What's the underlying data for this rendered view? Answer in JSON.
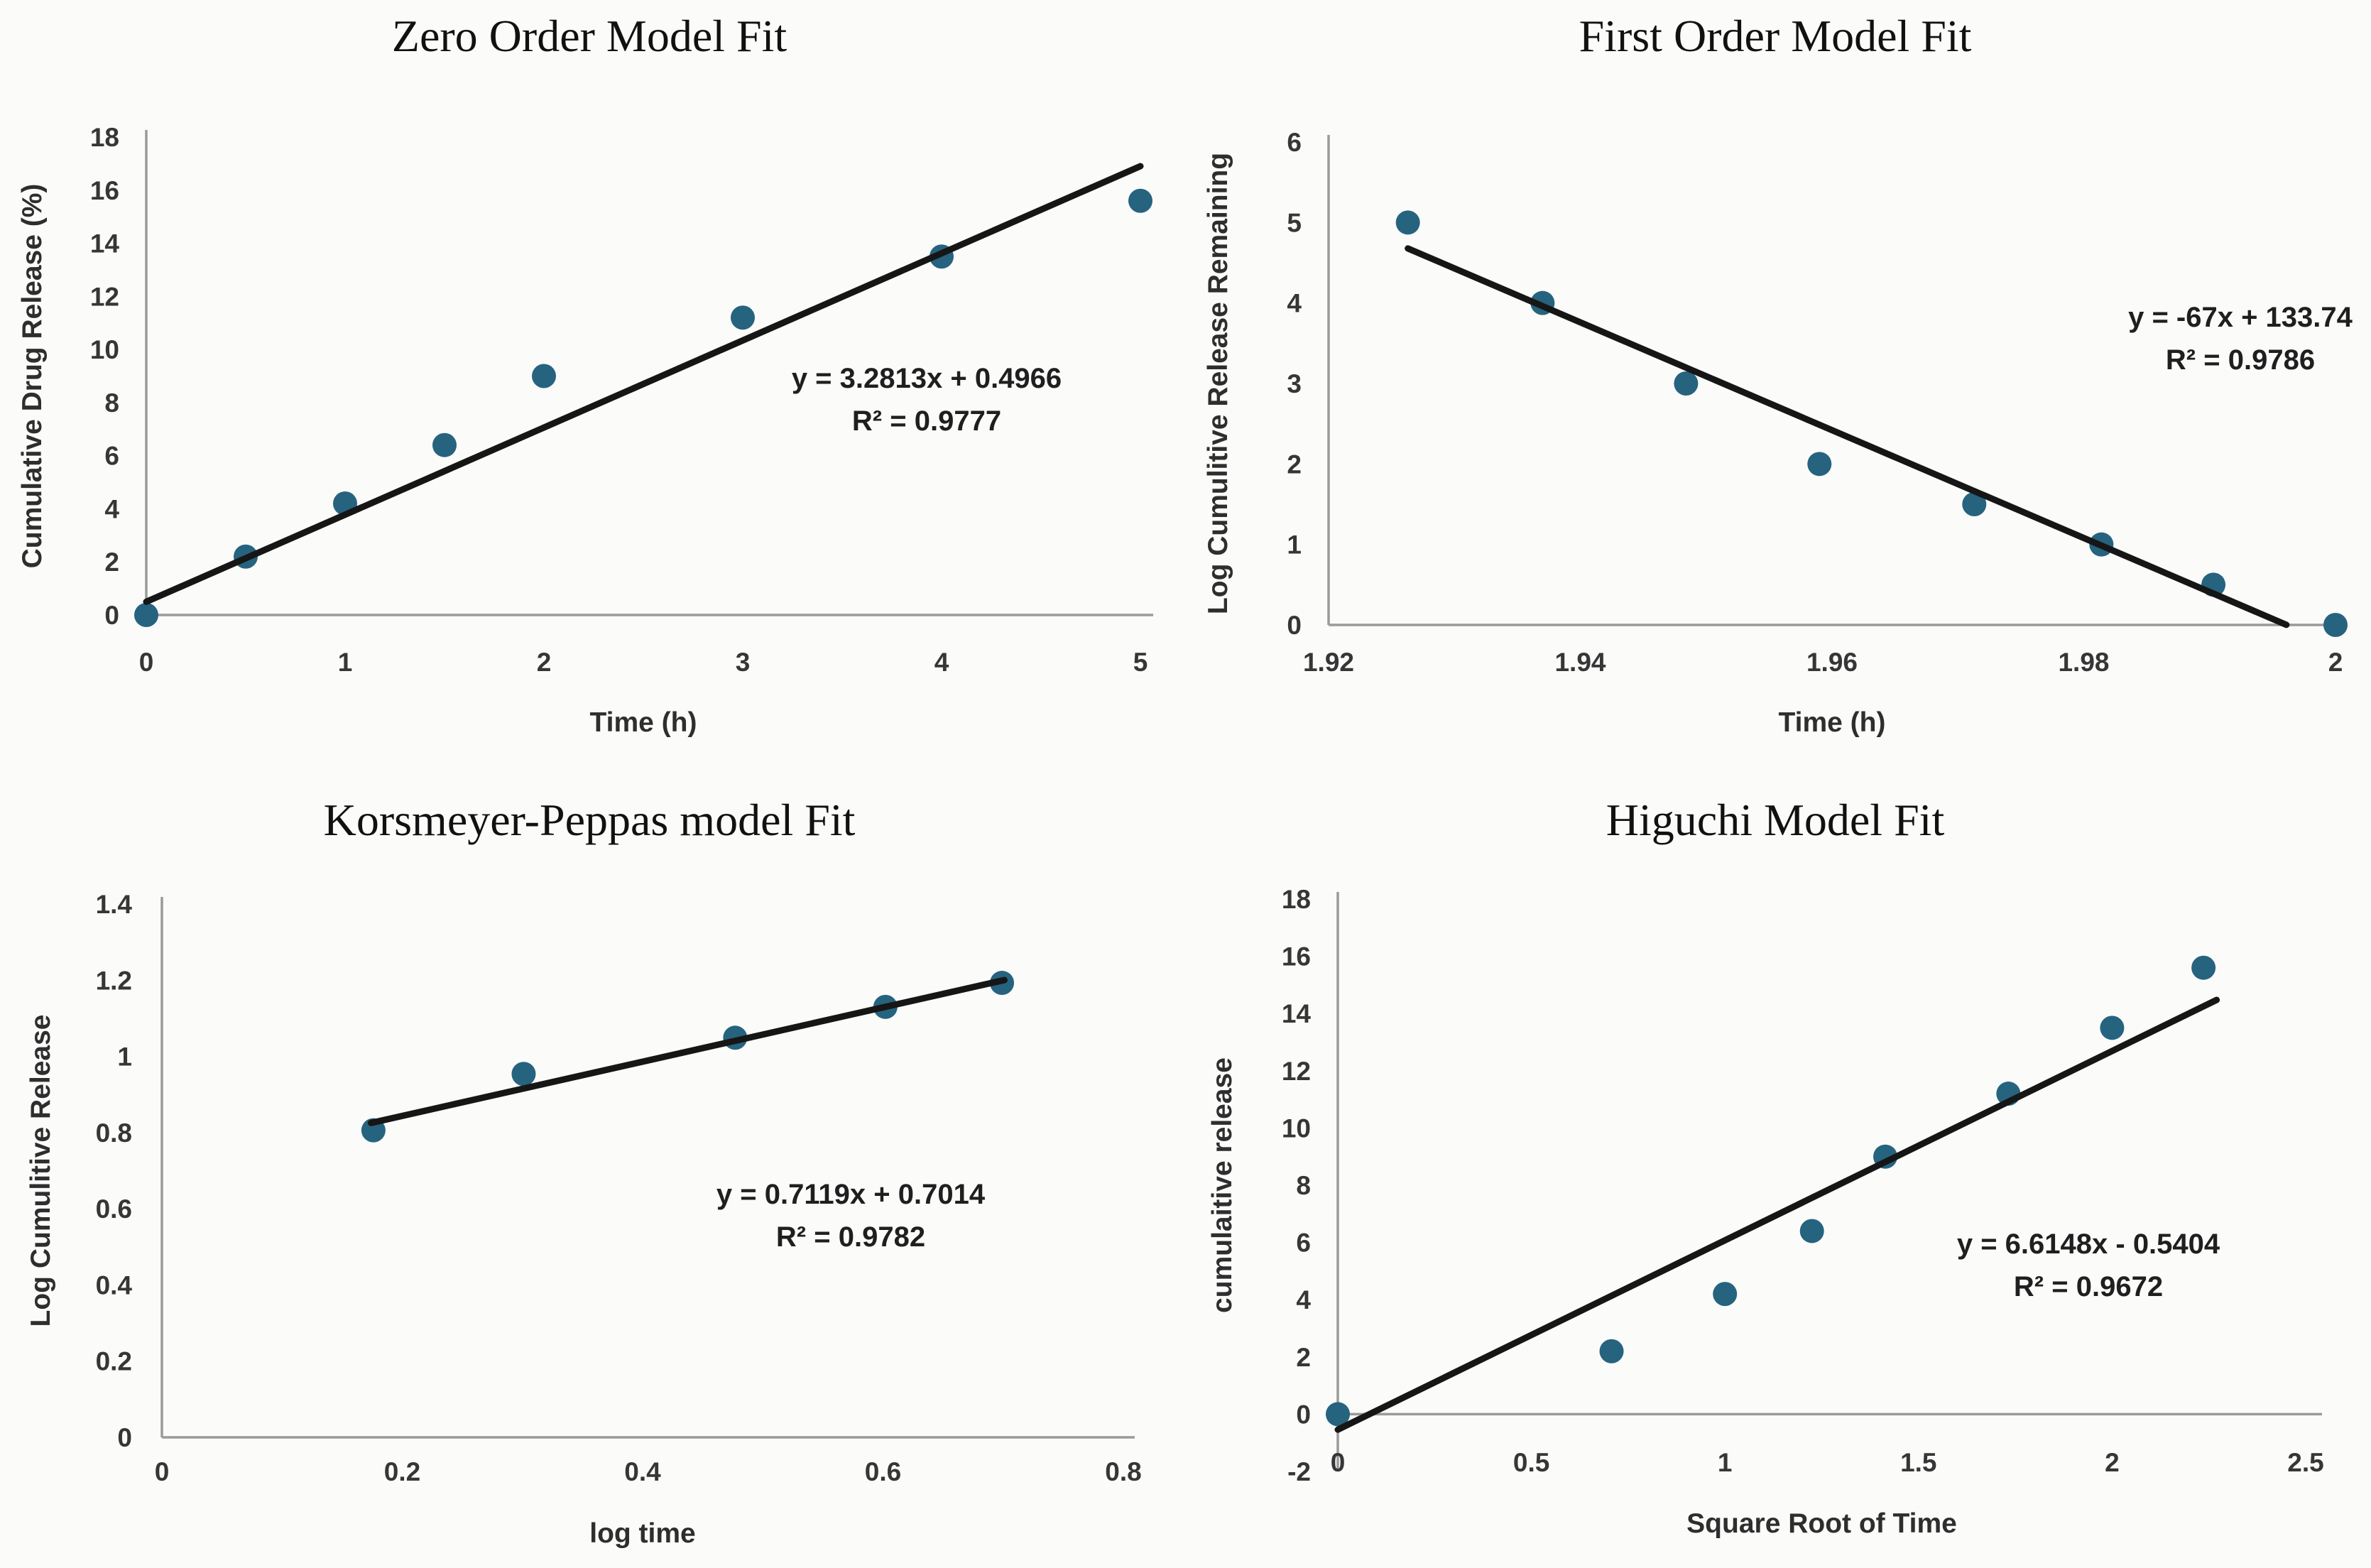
{
  "figure": {
    "background": "#fbfbfa"
  },
  "colors": {
    "point": "#26637f",
    "trendline": "#161616",
    "axis_line": "#9a9a9a",
    "tick_text": "#363636",
    "title_text": "#111111"
  },
  "chart_data": [
    {
      "id": "zero-order",
      "type": "scatter",
      "title": "Zero Order Model Fit",
      "xlabel": "Time (h)",
      "ylabel": "Cumulative Drug Release (%)",
      "equation": "y = 3.2813x + 0.4966",
      "r2": "R² = 0.9777",
      "xlim": [
        0,
        5
      ],
      "ylim": [
        0,
        18
      ],
      "grid": false,
      "xticks": {
        "values": [
          0,
          1,
          2,
          3,
          4,
          5
        ],
        "labels": [
          "0",
          "1",
          "2",
          "3",
          "4",
          "5"
        ]
      },
      "yticks": {
        "values": [
          0,
          2,
          4,
          6,
          8,
          10,
          12,
          14,
          16,
          18
        ],
        "labels": [
          "0",
          "2",
          "4",
          "6",
          "8",
          "10",
          "12",
          "14",
          "16",
          "18"
        ]
      },
      "points": [
        [
          0,
          0
        ],
        [
          0.5,
          2.2
        ],
        [
          1,
          4.2
        ],
        [
          1.5,
          6.4
        ],
        [
          2,
          9
        ],
        [
          3,
          11.2
        ],
        [
          4,
          13.5
        ],
        [
          5,
          15.6
        ]
      ],
      "trendline": {
        "slope": 3.2813,
        "intercept": 0.4966,
        "x_start": 0,
        "x_end": 5
      }
    },
    {
      "id": "first-order",
      "type": "scatter",
      "title": "First Order Model Fit",
      "xlabel": "Time (h)",
      "ylabel": "Log Cumulitive Release Remaining",
      "equation": "y = -67x + 133.74",
      "r2": "R² = 0.9786",
      "xlim": [
        1.92,
        2
      ],
      "ylim": [
        0,
        6
      ],
      "grid": false,
      "xticks": {
        "values": [
          1.92,
          1.94,
          1.96,
          1.98,
          2
        ],
        "labels": [
          "1.92",
          "1.94",
          "1.96",
          "1.98",
          "2"
        ]
      },
      "yticks": {
        "values": [
          0,
          1,
          2,
          3,
          4,
          5,
          6
        ],
        "labels": [
          "0",
          "1",
          "2",
          "3",
          "4",
          "5",
          "6"
        ]
      },
      "points": [
        [
          1.9263,
          5
        ],
        [
          1.937,
          4
        ],
        [
          1.9484,
          3
        ],
        [
          1.959,
          2
        ],
        [
          1.9713,
          1.5
        ],
        [
          1.9814,
          1
        ],
        [
          1.9903,
          0.5
        ],
        [
          2,
          0
        ]
      ],
      "trendline": {
        "slope": -67,
        "intercept": 133.74,
        "x_start": 1.9263,
        "x_end": 1.9961
      }
    },
    {
      "id": "korsmeyer-peppas",
      "type": "scatter",
      "title": "Korsmeyer-Peppas model Fit",
      "xlabel": "log time",
      "ylabel": "Log Cumulitive Release",
      "equation": "y = 0.7119x + 0.7014",
      "r2": "R² = 0.9782",
      "xlim": [
        0,
        0.8
      ],
      "ylim": [
        0,
        1.4
      ],
      "grid": false,
      "xticks": {
        "values": [
          0,
          0.2,
          0.4,
          0.6,
          0.8
        ],
        "labels": [
          "0",
          "0.2",
          "0.4",
          "0.6",
          "0.8"
        ]
      },
      "yticks": {
        "values": [
          0,
          0.2,
          0.4,
          0.6,
          0.8,
          1,
          1.2,
          1.4
        ],
        "labels": [
          "0",
          "0.2",
          "0.4",
          "0.6",
          "0.8",
          "1",
          "1.2",
          "1.4"
        ]
      },
      "points": [
        [
          0.176,
          0.806
        ],
        [
          0.301,
          0.954
        ],
        [
          0.477,
          1.049
        ],
        [
          0.602,
          1.13
        ],
        [
          0.699,
          1.193
        ]
      ],
      "trendline": {
        "slope": 0.7119,
        "intercept": 0.7014,
        "x_start": 0.174,
        "x_end": 0.701
      }
    },
    {
      "id": "higuchi",
      "type": "scatter",
      "title": "Higuchi Model Fit",
      "xlabel": "Square Root of Time",
      "ylabel": "cumulaitive release",
      "equation": "y = 6.6148x - 0.5404",
      "r2": "R² = 0.9672",
      "xlim": [
        0,
        2.5
      ],
      "ylim": [
        -2,
        18
      ],
      "grid": false,
      "xticks": {
        "values": [
          0,
          0.5,
          1,
          1.5,
          2,
          2.5
        ],
        "labels": [
          "0",
          "0.5",
          "1",
          "1.5",
          "2",
          "2.5"
        ]
      },
      "yticks": {
        "values": [
          -2,
          0,
          2,
          4,
          6,
          8,
          10,
          12,
          14,
          16,
          18
        ],
        "labels": [
          "-2",
          "0",
          "2",
          "4",
          "6",
          "8",
          "10",
          "12",
          "14",
          "16",
          "18"
        ]
      },
      "points": [
        [
          0,
          0
        ],
        [
          0.7071,
          2.2
        ],
        [
          1,
          4.2
        ],
        [
          1.2247,
          6.4
        ],
        [
          1.4142,
          9
        ],
        [
          1.7321,
          11.2
        ],
        [
          2,
          13.5
        ],
        [
          2.2361,
          15.6
        ]
      ],
      "trendline": {
        "slope": 6.6148,
        "intercept": -0.5404,
        "x_start": 0,
        "x_end": 2.27
      }
    }
  ]
}
